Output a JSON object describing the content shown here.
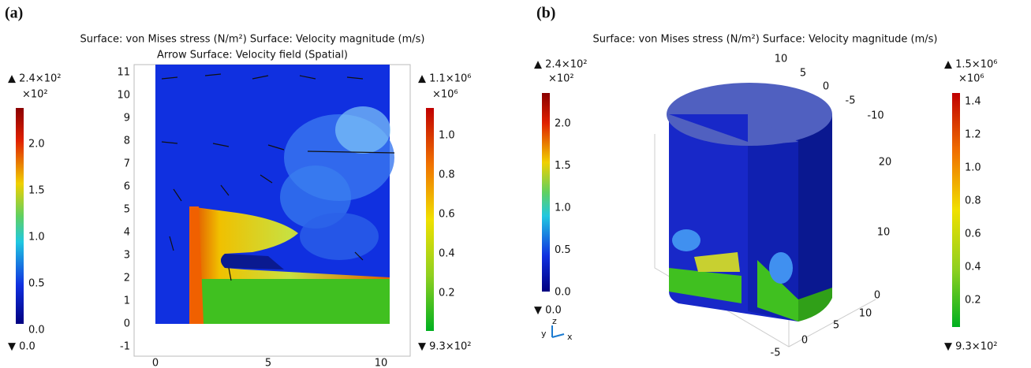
{
  "panels": [
    {
      "label": "(a)",
      "title_lines": [
        "Surface: von Mises stress (N/m²)  Surface: Velocity magnitude (m/s)",
        "Arrow Surface: Velocity field (Spatial)"
      ],
      "left_colorbar": {
        "max": "▲ 2.4×10²",
        "multiplier": "×10²",
        "ticks": [
          "2.0",
          "1.5",
          "1.0",
          "0.5",
          "0.0"
        ],
        "min": "▼ 0.0"
      },
      "right_colorbar": {
        "max": "▲ 1.1×10⁶",
        "multiplier": "×10⁶",
        "ticks": [
          "1.0",
          "0.8",
          "0.6",
          "0.4",
          "0.2"
        ],
        "min": "▼ 9.3×10²"
      },
      "y_ticks": [
        "11",
        "10",
        "9",
        "8",
        "7",
        "6",
        "5",
        "4",
        "3",
        "2",
        "1",
        "0",
        "-1"
      ],
      "x_ticks": [
        "0",
        "5",
        "10"
      ]
    },
    {
      "label": "(b)",
      "title_lines": [
        "Surface: von Mises stress (N/m²)  Surface: Velocity magnitude (m/s)"
      ],
      "left_colorbar": {
        "max": "▲ 2.4×10²",
        "multiplier": "×10²",
        "ticks": [
          "2.0",
          "1.5",
          "1.0",
          "0.5",
          "0.0"
        ],
        "min": "▼ 0.0"
      },
      "right_colorbar": {
        "max": "▲ 1.5×10⁶",
        "multiplier": "×10⁶",
        "ticks": [
          "1.4",
          "1.2",
          "1.0",
          "0.8",
          "0.6",
          "0.4",
          "0.2"
        ],
        "min": "▼ 9.3×10²"
      },
      "axis_labels": [
        "10",
        "5",
        "0",
        "-5",
        "-10",
        "20",
        "10",
        "0",
        "10",
        "5",
        "0",
        "-5"
      ],
      "triad": [
        "y",
        "z",
        "x"
      ]
    }
  ]
}
